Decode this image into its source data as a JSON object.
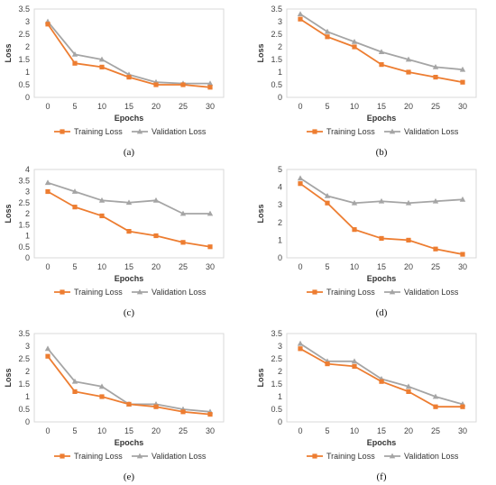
{
  "chart_data": [
    {
      "type": "line",
      "caption": "(a)",
      "xlabel": "Epochs",
      "ylabel": "Loss",
      "x": [
        0,
        5,
        10,
        15,
        20,
        25,
        30
      ],
      "ylim": [
        0,
        3.5
      ],
      "yticks": [
        "0",
        "0.5",
        "1",
        "1.5",
        "2",
        "2.5",
        "3",
        "3.5"
      ],
      "grid": "none",
      "legend": "bottom",
      "series": [
        {
          "name": "Training Loss",
          "color": "#ED7D31",
          "marker": "square",
          "values": [
            2.9,
            1.35,
            1.2,
            0.8,
            0.5,
            0.5,
            0.4
          ]
        },
        {
          "name": "Validation Loss",
          "color": "#A5A5A5",
          "marker": "triangle",
          "values": [
            3.0,
            1.7,
            1.5,
            0.9,
            0.6,
            0.55,
            0.55
          ]
        }
      ]
    },
    {
      "type": "line",
      "caption": "(b)",
      "xlabel": "Epochs",
      "ylabel": "Loss",
      "x": [
        0,
        5,
        10,
        15,
        20,
        25,
        30
      ],
      "ylim": [
        0,
        3.5
      ],
      "yticks": [
        "0",
        "0.5",
        "1",
        "1.5",
        "2",
        "2.5",
        "3",
        "3.5"
      ],
      "grid": "none",
      "legend": "bottom",
      "series": [
        {
          "name": "Training Loss",
          "color": "#ED7D31",
          "marker": "square",
          "values": [
            3.1,
            2.4,
            2.0,
            1.3,
            1.0,
            0.8,
            0.6
          ]
        },
        {
          "name": "Validation Loss",
          "color": "#A5A5A5",
          "marker": "triangle",
          "values": [
            3.3,
            2.6,
            2.2,
            1.8,
            1.5,
            1.2,
            1.1
          ]
        }
      ]
    },
    {
      "type": "line",
      "caption": "(c)",
      "xlabel": "Epochs",
      "ylabel": "Loss",
      "x": [
        0,
        5,
        10,
        15,
        20,
        25,
        30
      ],
      "ylim": [
        0,
        4
      ],
      "yticks": [
        "0",
        "0.5",
        "1",
        "1.5",
        "2",
        "2.5",
        "3",
        "3.5",
        "4"
      ],
      "grid": "none",
      "legend": "bottom",
      "series": [
        {
          "name": "Training Loss",
          "color": "#ED7D31",
          "marker": "square",
          "values": [
            3.0,
            2.3,
            1.9,
            1.2,
            1.0,
            0.7,
            0.5
          ]
        },
        {
          "name": "Validation Loss",
          "color": "#A5A5A5",
          "marker": "triangle",
          "values": [
            3.4,
            3.0,
            2.6,
            2.5,
            2.6,
            2.0,
            2.0
          ]
        }
      ]
    },
    {
      "type": "line",
      "caption": "(d)",
      "xlabel": "Epochs",
      "ylabel": "Loss",
      "x": [
        0,
        5,
        10,
        15,
        20,
        25,
        30
      ],
      "ylim": [
        0,
        5
      ],
      "yticks": [
        "0",
        "1",
        "2",
        "3",
        "4",
        "5"
      ],
      "grid": "none",
      "legend": "bottom",
      "series": [
        {
          "name": "Training Loss",
          "color": "#ED7D31",
          "marker": "square",
          "values": [
            4.2,
            3.1,
            1.6,
            1.1,
            1.0,
            0.5,
            0.2
          ]
        },
        {
          "name": "Validation Loss",
          "color": "#A5A5A5",
          "marker": "triangle",
          "values": [
            4.5,
            3.5,
            3.1,
            3.2,
            3.1,
            3.2,
            3.3
          ]
        }
      ]
    },
    {
      "type": "line",
      "caption": "(e)",
      "xlabel": "Epochs",
      "ylabel": "Loss",
      "x": [
        0,
        5,
        10,
        15,
        20,
        25,
        30
      ],
      "ylim": [
        0,
        3.5
      ],
      "yticks": [
        "0",
        "0.5",
        "1",
        "1.5",
        "2",
        "2.5",
        "3",
        "3.5"
      ],
      "grid": "none",
      "legend": "bottom",
      "series": [
        {
          "name": "Training Loss",
          "color": "#ED7D31",
          "marker": "square",
          "values": [
            2.6,
            1.2,
            1.0,
            0.7,
            0.6,
            0.4,
            0.3
          ]
        },
        {
          "name": "Validation Loss",
          "color": "#A5A5A5",
          "marker": "triangle",
          "values": [
            2.9,
            1.6,
            1.4,
            0.7,
            0.7,
            0.5,
            0.4
          ]
        }
      ]
    },
    {
      "type": "line",
      "caption": "(f)",
      "xlabel": "Epochs",
      "ylabel": "Loss",
      "x": [
        0,
        5,
        10,
        15,
        20,
        25,
        30
      ],
      "ylim": [
        0,
        3.5
      ],
      "yticks": [
        "0",
        "0.5",
        "1",
        "1.5",
        "2",
        "2.5",
        "3",
        "3.5"
      ],
      "grid": "none",
      "legend": "bottom",
      "series": [
        {
          "name": "Training Loss",
          "color": "#ED7D31",
          "marker": "square",
          "values": [
            2.9,
            2.3,
            2.2,
            1.6,
            1.2,
            0.6,
            0.6
          ]
        },
        {
          "name": "Validation Loss",
          "color": "#A5A5A5",
          "marker": "triangle",
          "values": [
            3.1,
            2.4,
            2.4,
            1.7,
            1.4,
            1.0,
            0.7
          ]
        }
      ]
    }
  ]
}
